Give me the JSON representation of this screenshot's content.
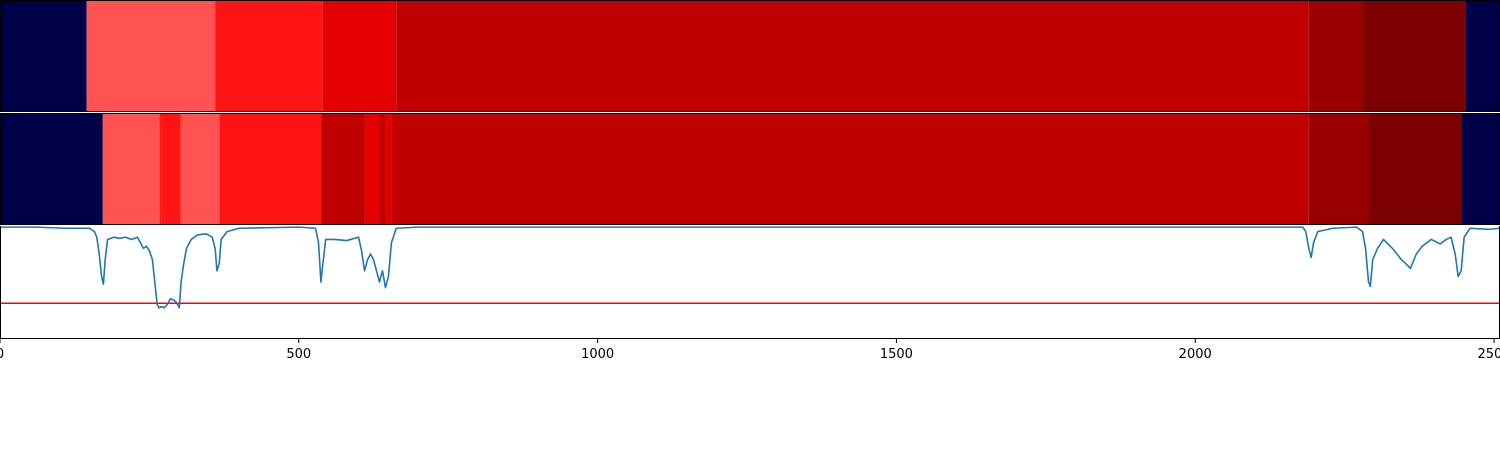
{
  "chart_data": {
    "type": "heatmap",
    "xlim": [
      0,
      2510
    ],
    "ylim": [
      -1.0,
      0.0
    ],
    "x_ticks": [
      0,
      500,
      1000,
      1500,
      2000,
      2500
    ],
    "x_tick_labels": [
      "0",
      "500",
      "1000",
      "1500",
      "2000",
      "2500"
    ],
    "grid": false,
    "palette": {
      "navy": "#000049",
      "light_red": "#ff5252",
      "red": "#ff1414",
      "bright_red": "#e40000",
      "red_dark": "#c00000",
      "dark_red": "#9b0000",
      "maroon": "#7d0000"
    },
    "band_rows": [
      {
        "segments": [
          {
            "start": 0,
            "end": 145,
            "color": "navy"
          },
          {
            "start": 145,
            "end": 360,
            "color": "light_red"
          },
          {
            "start": 360,
            "end": 540,
            "color": "red"
          },
          {
            "start": 540,
            "end": 663,
            "color": "bright_red"
          },
          {
            "start": 663,
            "end": 2190,
            "color": "red_dark"
          },
          {
            "start": 2190,
            "end": 2280,
            "color": "dark_red"
          },
          {
            "start": 2280,
            "end": 2452,
            "color": "maroon"
          },
          {
            "start": 2452,
            "end": 2510,
            "color": "navy"
          }
        ]
      },
      {
        "segments": [
          {
            "start": 0,
            "end": 172,
            "color": "navy"
          },
          {
            "start": 172,
            "end": 267,
            "color": "light_red"
          },
          {
            "start": 267,
            "end": 270,
            "color": "red"
          },
          {
            "start": 270,
            "end": 302,
            "color": "red"
          },
          {
            "start": 302,
            "end": 367,
            "color": "light_red"
          },
          {
            "start": 367,
            "end": 538,
            "color": "red"
          },
          {
            "start": 538,
            "end": 610,
            "color": "red_dark"
          },
          {
            "start": 610,
            "end": 635,
            "color": "bright_red"
          },
          {
            "start": 635,
            "end": 645,
            "color": "red_dark"
          },
          {
            "start": 645,
            "end": 655,
            "color": "bright_red"
          },
          {
            "start": 655,
            "end": 2190,
            "color": "red_dark"
          },
          {
            "start": 2190,
            "end": 2290,
            "color": "dark_red"
          },
          {
            "start": 2290,
            "end": 2445,
            "color": "maroon"
          },
          {
            "start": 2445,
            "end": 2510,
            "color": "navy"
          }
        ]
      }
    ],
    "threshold": {
      "y": -0.69,
      "color": "#ff0000"
    },
    "series": [
      {
        "color": "#1f77b4",
        "points": [
          [
            0,
            -0.01
          ],
          [
            60,
            -0.01
          ],
          [
            110,
            -0.02
          ],
          [
            150,
            -0.02
          ],
          [
            158,
            -0.05
          ],
          [
            162,
            -0.1
          ],
          [
            166,
            -0.25
          ],
          [
            170,
            -0.45
          ],
          [
            173,
            -0.52
          ],
          [
            176,
            -0.3
          ],
          [
            180,
            -0.12
          ],
          [
            190,
            -0.1
          ],
          [
            200,
            -0.11
          ],
          [
            210,
            -0.1
          ],
          [
            220,
            -0.12
          ],
          [
            230,
            -0.1
          ],
          [
            240,
            -0.2
          ],
          [
            245,
            -0.18
          ],
          [
            250,
            -0.22
          ],
          [
            255,
            -0.3
          ],
          [
            260,
            -0.55
          ],
          [
            263,
            -0.7
          ],
          [
            266,
            -0.73
          ],
          [
            270,
            -0.72
          ],
          [
            275,
            -0.73
          ],
          [
            280,
            -0.7
          ],
          [
            285,
            -0.65
          ],
          [
            290,
            -0.66
          ],
          [
            295,
            -0.68
          ],
          [
            300,
            -0.73
          ],
          [
            303,
            -0.5
          ],
          [
            307,
            -0.35
          ],
          [
            312,
            -0.2
          ],
          [
            320,
            -0.12
          ],
          [
            330,
            -0.08
          ],
          [
            345,
            -0.07
          ],
          [
            355,
            -0.1
          ],
          [
            360,
            -0.2
          ],
          [
            363,
            -0.4
          ],
          [
            367,
            -0.33
          ],
          [
            370,
            -0.12
          ],
          [
            380,
            -0.05
          ],
          [
            400,
            -0.02
          ],
          [
            500,
            -0.01
          ],
          [
            528,
            -0.02
          ],
          [
            533,
            -0.15
          ],
          [
            537,
            -0.5
          ],
          [
            540,
            -0.35
          ],
          [
            545,
            -0.12
          ],
          [
            560,
            -0.12
          ],
          [
            580,
            -0.13
          ],
          [
            600,
            -0.1
          ],
          [
            605,
            -0.22
          ],
          [
            610,
            -0.4
          ],
          [
            615,
            -0.3
          ],
          [
            620,
            -0.25
          ],
          [
            625,
            -0.3
          ],
          [
            630,
            -0.4
          ],
          [
            635,
            -0.5
          ],
          [
            640,
            -0.4
          ],
          [
            645,
            -0.55
          ],
          [
            650,
            -0.45
          ],
          [
            655,
            -0.15
          ],
          [
            663,
            -0.02
          ],
          [
            700,
            -0.01
          ],
          [
            1500,
            -0.01
          ],
          [
            2180,
            -0.01
          ],
          [
            2185,
            -0.05
          ],
          [
            2190,
            -0.2
          ],
          [
            2194,
            -0.28
          ],
          [
            2198,
            -0.15
          ],
          [
            2205,
            -0.05
          ],
          [
            2230,
            -0.02
          ],
          [
            2270,
            -0.01
          ],
          [
            2280,
            -0.05
          ],
          [
            2285,
            -0.2
          ],
          [
            2290,
            -0.5
          ],
          [
            2293,
            -0.54
          ],
          [
            2297,
            -0.3
          ],
          [
            2305,
            -0.2
          ],
          [
            2315,
            -0.12
          ],
          [
            2330,
            -0.2
          ],
          [
            2345,
            -0.3
          ],
          [
            2355,
            -0.35
          ],
          [
            2360,
            -0.38
          ],
          [
            2370,
            -0.25
          ],
          [
            2380,
            -0.18
          ],
          [
            2395,
            -0.12
          ],
          [
            2410,
            -0.16
          ],
          [
            2420,
            -0.12
          ],
          [
            2428,
            -0.1
          ],
          [
            2435,
            -0.25
          ],
          [
            2440,
            -0.45
          ],
          [
            2445,
            -0.4
          ],
          [
            2450,
            -0.1
          ],
          [
            2460,
            -0.02
          ],
          [
            2490,
            -0.03
          ],
          [
            2510,
            -0.02
          ]
        ]
      }
    ]
  }
}
